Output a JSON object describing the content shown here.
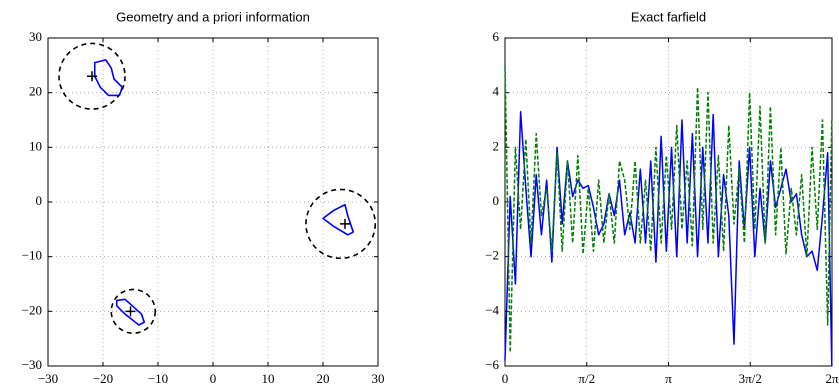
{
  "chart_data": [
    {
      "type": "geometry",
      "title": "Geometry and a priori information",
      "xlim": [
        -30,
        30
      ],
      "ylim": [
        -30,
        30
      ],
      "xticks": [
        {
          "value": -30,
          "label": "−30"
        },
        {
          "value": -20,
          "label": "−20"
        },
        {
          "value": -10,
          "label": "−10"
        },
        0,
        10,
        20,
        30
      ],
      "yticks": [
        {
          "value": -30,
          "label": "−30"
        },
        {
          "value": -20,
          "label": "−20"
        },
        {
          "value": -10,
          "label": "−10"
        },
        0,
        10,
        20,
        30
      ],
      "grid": true,
      "circles": [
        {
          "center": [
            -22,
            23
          ],
          "radius": 6
        },
        {
          "center": [
            23.2,
            -4
          ],
          "radius": 6.3
        },
        {
          "center": [
            -14.5,
            -20
          ],
          "radius": 4
        }
      ],
      "circle_color": "#000000",
      "obstacles": [
        {
          "x": [
            -21.5,
            -19.5,
            -18.5,
            -18,
            -16.5,
            -17,
            -19,
            -20.5,
            -21.5
          ],
          "y": [
            25.5,
            26,
            24.5,
            22.5,
            21,
            19.5,
            19.5,
            21,
            23
          ]
        },
        {
          "x": [
            20,
            22,
            24,
            24.5,
            25.5,
            24.5,
            22
          ],
          "y": [
            -3,
            -1.5,
            -0.5,
            -2.5,
            -5.5,
            -6,
            -4.5
          ]
        },
        {
          "x": [
            -17.5,
            -16,
            -13,
            -12.5,
            -13.5,
            -16,
            -17.5
          ],
          "y": [
            -18,
            -17.8,
            -20.5,
            -22,
            -22.5,
            -20.5,
            -19
          ]
        }
      ],
      "obstacle_color": "#0000ff",
      "markers": {
        "x": [
          -22,
          24,
          -15
        ],
        "y": [
          23,
          -4,
          -20
        ]
      }
    },
    {
      "type": "line",
      "title": "Exact farfield",
      "xlim": [
        0,
        6.2832
      ],
      "ylim": [
        -6,
        6
      ],
      "xticks": [
        0,
        {
          "value": 1.5708,
          "label": "π/2"
        },
        {
          "value": 3.1416,
          "label": "π"
        },
        {
          "value": 4.7124,
          "label": "3π/2"
        },
        {
          "value": 6.2832,
          "label": "2π"
        }
      ],
      "yticks": [
        {
          "value": -6,
          "label": "−6"
        },
        {
          "value": -4,
          "label": "−4"
        },
        {
          "value": -2,
          "label": "−2"
        },
        0,
        2,
        4,
        6
      ],
      "grid": true,
      "x": [
        0,
        0.1,
        0.2,
        0.3,
        0.4,
        0.5,
        0.6,
        0.7,
        0.8,
        0.9,
        1,
        1.1,
        1.2,
        1.3,
        1.4,
        1.5,
        1.6,
        1.7,
        1.8,
        1.9,
        2,
        2.1,
        2.2,
        2.3,
        2.4,
        2.5,
        2.6,
        2.7,
        2.8,
        2.9,
        3,
        3.1,
        3.2,
        3.3,
        3.4,
        3.5,
        3.6,
        3.7,
        3.8,
        3.9,
        4,
        4.1,
        4.2,
        4.3,
        4.4,
        4.5,
        4.6,
        4.7,
        4.8,
        4.9,
        5,
        5.1,
        5.2,
        5.3,
        5.4,
        5.5,
        5.6,
        5.7,
        5.8,
        5.9,
        6,
        6.1,
        6.2,
        6.28
      ],
      "series": [
        {
          "color": "#0000ff",
          "dash": false,
          "values": [
            -5.8,
            0.2,
            -3,
            3.3,
            0.5,
            -2,
            1,
            -1.2,
            0.8,
            -2.2,
            2,
            -0.8,
            1.5,
            0.2,
            0.8,
            0.5,
            0.6,
            -0.2,
            -1.2,
            -0.8,
            0.3,
            -0.5,
            0.8,
            -1.2,
            -0.4,
            -1.5,
            1.2,
            -1.5,
            1.5,
            -2.2,
            2.4,
            -1.8,
            2,
            -2,
            3,
            -1.5,
            2.5,
            -2,
            2,
            -1.5,
            3.2,
            -2,
            1,
            -0.5,
            -5.2,
            1.5,
            -1,
            2,
            -2,
            0.5,
            -1.5,
            1.5,
            -0.2,
            0.5,
            1.2,
            0,
            0.3,
            -1.2,
            -2,
            -1.8,
            -2.5,
            -0.5,
            1.8,
            -6
          ]
        },
        {
          "color": "#008000",
          "dash": true,
          "values": [
            5,
            -5.5,
            2,
            -1,
            2.3,
            -1.5,
            2.5,
            -0.5,
            0.5,
            -1.8,
            1.8,
            -1.8,
            1.5,
            -1.5,
            1.7,
            -1.9,
            0.5,
            -1.8,
            0.8,
            -1.5,
            0.3,
            -1.5,
            1.5,
            0.8,
            -1,
            1.5,
            -1.5,
            0.8,
            -1.8,
            2,
            -1.5,
            1.7,
            -1,
            2.8,
            -1,
            1.5,
            -1.6,
            4.2,
            -1,
            4,
            -1.5,
            1.7,
            -1.8,
            2.8,
            -0.8,
            1.2,
            -1.5,
            4,
            -1,
            3.5,
            -1.5,
            3.5,
            -1.2,
            2,
            -1.9,
            0.5,
            -1.2,
            1,
            -2,
            2,
            -1,
            3,
            -4.5,
            3
          ]
        }
      ]
    }
  ]
}
